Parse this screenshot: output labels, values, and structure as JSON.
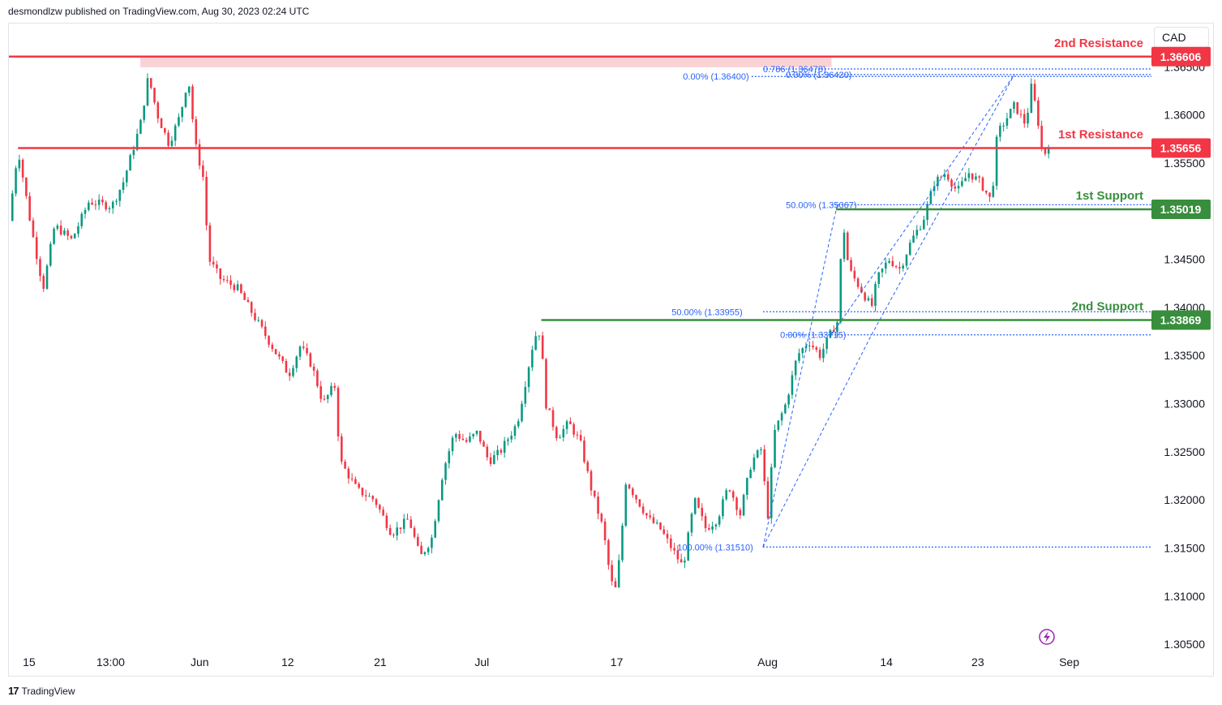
{
  "header": {
    "attribution": "desmondlzw published on TradingView.com, Aug 30, 2023 02:24 UTC"
  },
  "footer": {
    "logo_mark": "17",
    "brand": "TradingView"
  },
  "currency": "CAD",
  "colors": {
    "resistance": "#f23645",
    "support": "#388e3c",
    "fib": "#2962ff",
    "up": "#089981",
    "down": "#f23645",
    "zone": "#f8bfc4"
  },
  "chart_data": {
    "type": "candlestick",
    "instrument_quote": "CAD",
    "ylim": [
      1.3045,
      1.3695
    ],
    "y_ticks": [
      "1.30500",
      "1.31000",
      "1.31500",
      "1.32000",
      "1.32500",
      "1.33000",
      "1.33500",
      "1.34000",
      "1.34500",
      "1.35000",
      "1.35500",
      "1.36000",
      "1.36500"
    ],
    "x_ticks": [
      {
        "label": "15",
        "pos": 0.012
      },
      {
        "label": "13:00",
        "pos": 0.089
      },
      {
        "label": "Jun",
        "pos": 0.167
      },
      {
        "label": "12",
        "pos": 0.244
      },
      {
        "label": "21",
        "pos": 0.325
      },
      {
        "label": "Jul",
        "pos": 0.414
      },
      {
        "label": "17",
        "pos": 0.532
      },
      {
        "label": "Aug",
        "pos": 0.664
      },
      {
        "label": "14",
        "pos": 0.768
      },
      {
        "label": "23",
        "pos": 0.848
      },
      {
        "label": "Sep",
        "pos": 0.928
      }
    ],
    "price_path": [
      [
        0.0,
        1.349
      ],
      [
        0.008,
        1.3565
      ],
      [
        0.02,
        1.348
      ],
      [
        0.03,
        1.342
      ],
      [
        0.04,
        1.3485
      ],
      [
        0.055,
        1.347
      ],
      [
        0.07,
        1.351
      ],
      [
        0.09,
        1.3505
      ],
      [
        0.1,
        1.353
      ],
      [
        0.115,
        1.359
      ],
      [
        0.122,
        1.364
      ],
      [
        0.13,
        1.36
      ],
      [
        0.14,
        1.357
      ],
      [
        0.15,
        1.36
      ],
      [
        0.157,
        1.364
      ],
      [
        0.163,
        1.357
      ],
      [
        0.17,
        1.3535
      ],
      [
        0.175,
        1.345
      ],
      [
        0.185,
        1.343
      ],
      [
        0.2,
        1.342
      ],
      [
        0.215,
        1.339
      ],
      [
        0.23,
        1.336
      ],
      [
        0.245,
        1.333
      ],
      [
        0.255,
        1.336
      ],
      [
        0.265,
        1.334
      ],
      [
        0.275,
        1.33
      ],
      [
        0.285,
        1.332
      ],
      [
        0.29,
        1.324
      ],
      [
        0.305,
        1.321
      ],
      [
        0.32,
        1.32
      ],
      [
        0.335,
        1.3165
      ],
      [
        0.35,
        1.318
      ],
      [
        0.36,
        1.314
      ],
      [
        0.37,
        1.316
      ],
      [
        0.38,
        1.323
      ],
      [
        0.39,
        1.327
      ],
      [
        0.4,
        1.326
      ],
      [
        0.41,
        1.327
      ],
      [
        0.42,
        1.324
      ],
      [
        0.43,
        1.325
      ],
      [
        0.445,
        1.328
      ],
      [
        0.46,
        1.337
      ],
      [
        0.465,
        1.3375
      ],
      [
        0.47,
        1.33
      ],
      [
        0.48,
        1.3265
      ],
      [
        0.49,
        1.328
      ],
      [
        0.5,
        1.326
      ],
      [
        0.51,
        1.321
      ],
      [
        0.52,
        1.317
      ],
      [
        0.525,
        1.313
      ],
      [
        0.53,
        1.31
      ],
      [
        0.535,
        1.3145
      ],
      [
        0.54,
        1.322
      ],
      [
        0.55,
        1.32
      ],
      [
        0.56,
        1.318
      ],
      [
        0.57,
        1.317
      ],
      [
        0.58,
        1.315
      ],
      [
        0.59,
        1.313
      ],
      [
        0.6,
        1.32
      ],
      [
        0.61,
        1.317
      ],
      [
        0.62,
        1.318
      ],
      [
        0.63,
        1.3215
      ],
      [
        0.64,
        1.3185
      ],
      [
        0.65,
        1.324
      ],
      [
        0.66,
        1.3255
      ],
      [
        0.663,
        1.3165
      ],
      [
        0.67,
        1.327
      ],
      [
        0.68,
        1.33
      ],
      [
        0.69,
        1.335
      ],
      [
        0.7,
        1.3365
      ],
      [
        0.71,
        1.335
      ],
      [
        0.72,
        1.3375
      ],
      [
        0.725,
        1.3385
      ],
      [
        0.73,
        1.349
      ],
      [
        0.735,
        1.344
      ],
      [
        0.745,
        1.342
      ],
      [
        0.755,
        1.34
      ],
      [
        0.76,
        1.343
      ],
      [
        0.77,
        1.345
      ],
      [
        0.78,
        1.344
      ],
      [
        0.79,
        1.347
      ],
      [
        0.8,
        1.349
      ],
      [
        0.81,
        1.353
      ],
      [
        0.82,
        1.354
      ],
      [
        0.83,
        1.352
      ],
      [
        0.84,
        1.354
      ],
      [
        0.85,
        1.353
      ],
      [
        0.86,
        1.351
      ],
      [
        0.865,
        1.358
      ],
      [
        0.87,
        1.359
      ],
      [
        0.88,
        1.361
      ],
      [
        0.885,
        1.36
      ],
      [
        0.89,
        1.359
      ],
      [
        0.895,
        1.363
      ],
      [
        0.9,
        1.36
      ],
      [
        0.905,
        1.3555
      ],
      [
        0.91,
        1.357
      ]
    ],
    "levels": [
      {
        "label": "2nd Resistance",
        "value": 1.36606,
        "tag": "1.36606",
        "kind": "resistance"
      },
      {
        "label": "1st Resistance",
        "value": 1.35656,
        "tag": "1.35656",
        "kind": "resistance"
      },
      {
        "label": "1st Support",
        "value": 1.35019,
        "tag": "1.35019",
        "kind": "support"
      },
      {
        "label": "2nd Support",
        "value": 1.33869,
        "tag": "1.33869",
        "kind": "support"
      }
    ],
    "fib_labels": [
      {
        "text": "0.786 (1.36478)",
        "value": 1.36478
      },
      {
        "text": "0.00% (1.36420)",
        "value": 1.3642
      },
      {
        "text": "0.00% (1.36400)",
        "value": 1.364
      },
      {
        "text": "50.00% (1.35067)",
        "value": 1.35067
      },
      {
        "text": "50.00% (1.33955)",
        "value": 1.33955
      },
      {
        "text": "0.00% (1.33715)",
        "value": 1.33715
      },
      {
        "text": "100.00% (1.31510)",
        "value": 1.3151
      }
    ]
  }
}
